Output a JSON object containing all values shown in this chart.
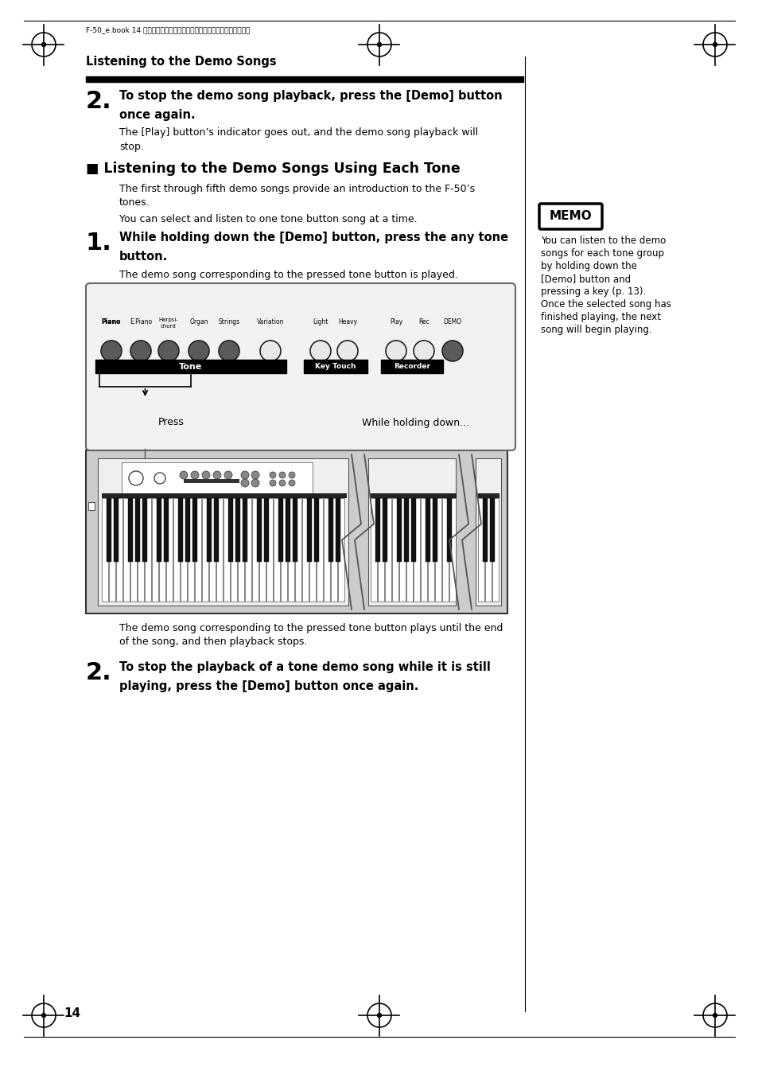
{
  "page_bg": "#ffffff",
  "page_num": "14",
  "header_title": "Listening to the Demo Songs",
  "step2_bold_line1": "To stop the demo song playback, press the [Demo] button",
  "step2_bold_line2": "once again.",
  "step2_body_line1": "The [Play] button’s indicator goes out, and the demo song playback will",
  "step2_body_line2": "stop.",
  "section_heading": "■ Listening to the Demo Songs Using Each Tone",
  "section_body1_line1": "The first through fifth demo songs provide an introduction to the F-50’s",
  "section_body1_line2": "tones.",
  "section_body2": "You can select and listen to one tone button song at a time.",
  "step1_bold_line1": "While holding down the [Demo] button, press the any tone",
  "step1_bold_line2": "button.",
  "step1_body": "The demo song corresponding to the pressed tone button is played.",
  "press_label": "Press",
  "while_label": "While holding down...",
  "tone_label": "Tone",
  "key_touch_label": "Key Touch",
  "recorder_label": "Recorder",
  "after_diagram_line1": "The demo song corresponding to the pressed tone button plays until the end",
  "after_diagram_line2": "of the song, and then playback stops.",
  "step2b_bold_line1": "To stop the playback of a tone demo song while it is still",
  "step2b_bold_line2": "playing, press the [Demo] button once again.",
  "memo_title": "MEMO",
  "memo_body": "You can listen to the demo\nsongs for each tone group\nby holding down the\n[Demo] button and\npressing a key (p. 13).\nOnce the selected song has\nfinished playing, the next\nsong will begin playing.",
  "btn_labels": [
    "Piano",
    "E.Piano",
    "Harpsi-\nchord",
    "Organ",
    "Strings",
    "Variation",
    "Light",
    "Heavy",
    "Play",
    "Rec",
    "DEMO"
  ],
  "btn_dark": [
    true,
    true,
    true,
    true,
    true,
    false,
    false,
    false,
    false,
    false,
    true
  ]
}
